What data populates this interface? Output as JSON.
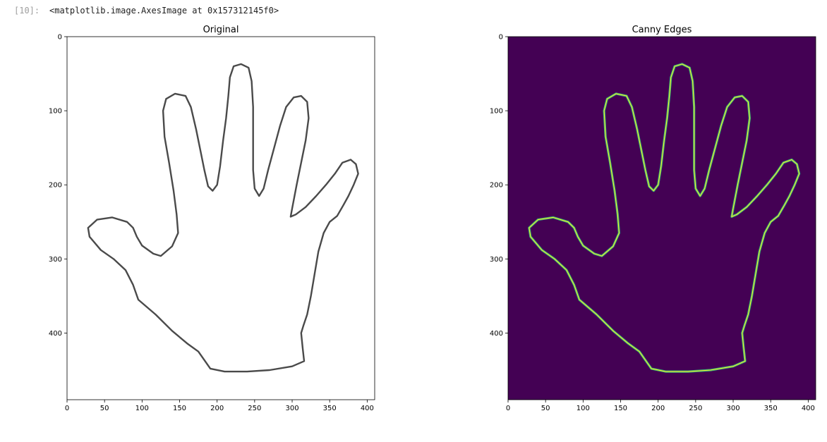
{
  "cell": {
    "prompt": "[10]:",
    "output_text": "<matplotlib.image.AxesImage at 0x157312145f0>"
  },
  "colors": {
    "canny_background": "#440154",
    "canny_edge_outer": "#35b779",
    "canny_edge_inner": "#fde725",
    "original_stroke": "#4a4a4a"
  },
  "chart_data": [
    {
      "type": "image",
      "title": "Original",
      "xlim": [
        0,
        410
      ],
      "ylim": [
        490,
        0
      ],
      "xticks": [
        "0",
        "50",
        "100",
        "150",
        "200",
        "250",
        "300",
        "350",
        "400"
      ],
      "yticks": [
        "0",
        "100",
        "200",
        "300",
        "400"
      ],
      "content": "hand outline, dark gray on white"
    },
    {
      "type": "image",
      "title": "Canny Edges",
      "xlim": [
        0,
        410
      ],
      "ylim": [
        490,
        0
      ],
      "xticks": [
        "0",
        "50",
        "100",
        "150",
        "200",
        "250",
        "300",
        "350",
        "400"
      ],
      "yticks": [
        "0",
        "100",
        "200",
        "300",
        "400"
      ],
      "content": "hand outline edges, viridis colormap"
    }
  ]
}
